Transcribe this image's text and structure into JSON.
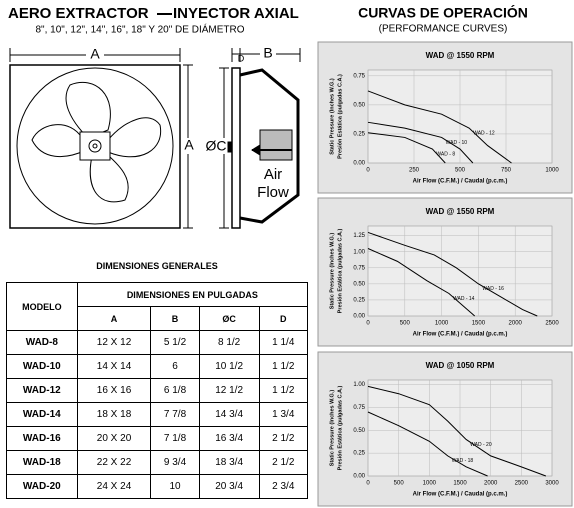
{
  "header": {
    "title_left": "AERO EXTRACTOR",
    "title_right": "INYECTOR AXIAL",
    "subtitle": "8\", 10\", 12\", 14\", 16\", 18\" Y 20\" DE  DIÁMETRO"
  },
  "drawing": {
    "front_width": "A",
    "front_height": "A",
    "depth": "D",
    "housing": "B",
    "diameter": "ØC",
    "airflow": [
      "Air",
      "Flow"
    ]
  },
  "table": {
    "title": "DIMENSIONES   GENERALES",
    "header_group": "DIMENSIONES  EN  PULGADAS",
    "columns": [
      "MODELO",
      "A",
      "B",
      "ØC",
      "D"
    ],
    "rows": [
      [
        "WAD-8",
        "12 X 12",
        "5 1/2",
        "8 1/2",
        "1 1/4"
      ],
      [
        "WAD-10",
        "14 X 14",
        "6",
        "10 1/2",
        "1 1/2"
      ],
      [
        "WAD-12",
        "16 X 16",
        "6 1/8",
        "12 1/2",
        "1 1/2"
      ],
      [
        "WAD-14",
        "18 X 18",
        "7 7/8",
        "14 3/4",
        "1 3/4"
      ],
      [
        "WAD-16",
        "20 X 20",
        "7 1/8",
        "16 3/4",
        "2 1/2"
      ],
      [
        "WAD-18",
        "22 X 22",
        "9 3/4",
        "18 3/4",
        "2 1/2"
      ],
      [
        "WAD-20",
        "24 X 24",
        "10",
        "20 3/4",
        "2 3/4"
      ]
    ]
  },
  "curves_header": {
    "title": "CURVAS DE OPERACIÓN",
    "subtitle": "(PERFORMANCE CURVES)"
  },
  "chart_data": [
    {
      "type": "line",
      "title": "WAD @ 1550 RPM",
      "xlabel": "Air Flow (C.F.M.) / Caudal (p.c.m.)",
      "ylabel": [
        "Static Pressure (Inches W.G.)",
        "Presión Estática (pulgadas C.A.)"
      ],
      "xlim": [
        0,
        1000
      ],
      "xticks": [
        0,
        250,
        500,
        750,
        1000
      ],
      "ylim": [
        0,
        0.8
      ],
      "yticks": [
        {
          "value": 0,
          "label": "0.00"
        },
        0.25,
        {
          "value": 0.5,
          "label": "0.50"
        },
        0.75
      ],
      "color": "#000000",
      "series": [
        {
          "name": "WAD - 12",
          "x": [
            0,
            200,
            400,
            550,
            650,
            780
          ],
          "values": [
            0.62,
            0.5,
            0.42,
            0.3,
            0.15,
            0
          ]
        },
        {
          "name": "WAD - 10",
          "x": [
            0,
            200,
            400,
            500,
            570
          ],
          "values": [
            0.35,
            0.3,
            0.22,
            0.12,
            0
          ]
        },
        {
          "name": "WAD - 8",
          "x": [
            0,
            200,
            350,
            420
          ],
          "values": [
            0.26,
            0.22,
            0.12,
            0
          ]
        }
      ]
    },
    {
      "type": "line",
      "title": "WAD @ 1550 RPM",
      "xlabel": "Air Flow (C.F.M.) / Caudal (p.c.m.)",
      "ylabel": [
        "Static Pressure (Inches W.G.)",
        "Presión Estática (pulgadas C.A.)"
      ],
      "xlim": [
        0,
        2500
      ],
      "xticks": [
        0,
        500,
        1000,
        1500,
        2000,
        2500
      ],
      "ylim": [
        0,
        1.4
      ],
      "yticks": [
        {
          "value": 0,
          "label": "0.00"
        },
        0.25,
        {
          "value": 0.5,
          "label": "0.50"
        },
        0.75,
        {
          "value": 1,
          "label": "1.00"
        },
        1.25
      ],
      "color": "#000000",
      "series": [
        {
          "name": "WAD - 16",
          "x": [
            0,
            500,
            900,
            1200,
            1500,
            1800,
            2100,
            2300
          ],
          "values": [
            1.3,
            1.1,
            0.95,
            0.75,
            0.5,
            0.3,
            0.1,
            0
          ]
        },
        {
          "name": "WAD - 14",
          "x": [
            0,
            400,
            800,
            1100,
            1300,
            1450
          ],
          "values": [
            1.05,
            0.85,
            0.55,
            0.35,
            0.15,
            0
          ]
        }
      ]
    },
    {
      "type": "line",
      "title": "WAD @ 1050 RPM",
      "xlabel": "Air Flow (C.F.M.) / Caudal (p.c.m.)",
      "ylabel": [
        "Static Pressure (Inches W.G.)",
        "Presión Estática (pulgadas C.A.)"
      ],
      "xlim": [
        0,
        3000
      ],
      "xticks": [
        0,
        500,
        1000,
        1500,
        2000,
        2500,
        3000
      ],
      "ylim": [
        0,
        1.05
      ],
      "yticks": [
        {
          "value": 0,
          "label": "0.00"
        },
        0.25,
        {
          "value": 0.5,
          "label": "0.50"
        },
        0.75,
        {
          "value": 1,
          "label": "1.00"
        }
      ],
      "color": "#000000",
      "series": [
        {
          "name": "WAD - 20",
          "x": [
            0,
            500,
            1000,
            1300,
            1600,
            2000,
            2500,
            2900
          ],
          "values": [
            0.98,
            0.9,
            0.78,
            0.6,
            0.4,
            0.22,
            0.1,
            0
          ]
        },
        {
          "name": "WAD - 18",
          "x": [
            0,
            500,
            1000,
            1300,
            1600,
            1950
          ],
          "values": [
            0.7,
            0.55,
            0.38,
            0.22,
            0.1,
            0
          ]
        }
      ]
    }
  ]
}
